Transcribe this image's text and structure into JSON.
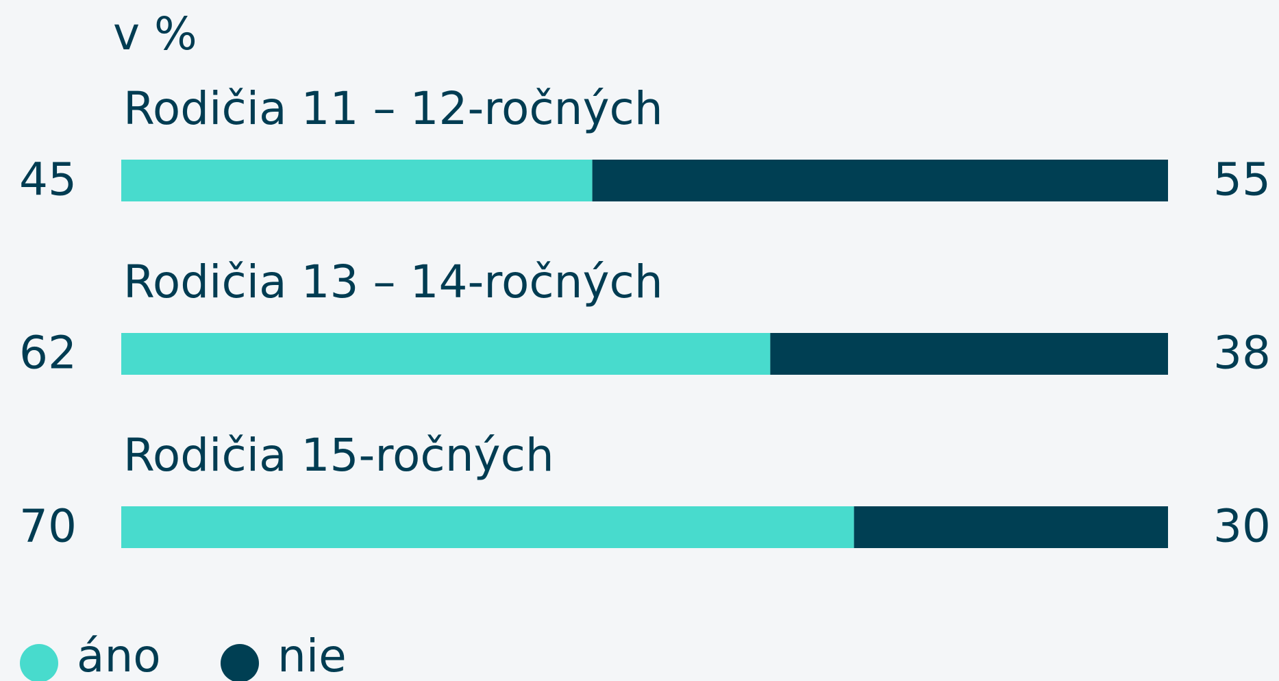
{
  "chart_data": {
    "type": "stacked_bar_horizontal",
    "subtitle": "v %",
    "categories": [
      "Rodičia 11 – 12-ročných",
      "Rodičia 13 – 14-ročných",
      "Rodičia 15-ročných"
    ],
    "series": [
      {
        "name": "áno",
        "color": "#48dbcd",
        "values": [
          45,
          62,
          70
        ]
      },
      {
        "name": "nie",
        "color": "#003f53",
        "values": [
          55,
          38,
          30
        ]
      }
    ],
    "legend": "bottom-left"
  }
}
